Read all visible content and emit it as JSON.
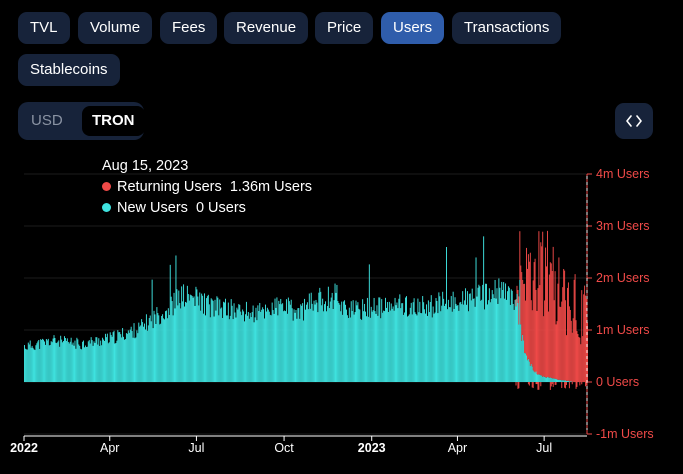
{
  "metric_tabs": [
    "TVL",
    "Volume",
    "Fees",
    "Revenue",
    "Price",
    "Users",
    "Transactions",
    "Stablecoins"
  ],
  "active_metric": "Users",
  "denomination": {
    "options": [
      "USD",
      "TRON"
    ],
    "active": "TRON"
  },
  "embed_icon": "code-brackets-icon",
  "tooltip": {
    "date": "Aug 15, 2023",
    "rows": [
      {
        "label": "Returning Users",
        "value": "1.36m Users",
        "color": "#f04a48"
      },
      {
        "label": "New Users",
        "value": "0 Users",
        "color": "#3fe3e0"
      }
    ]
  },
  "colors": {
    "new_users": "#3fe3e0",
    "returning_users": "#f04a48",
    "active_tab": "#2f5dab",
    "tab_bg": "#17233a"
  },
  "chart_data": {
    "type": "bar",
    "stacked": true,
    "x_ticks": [
      "2022",
      "Apr",
      "Jul",
      "Oct",
      "2023",
      "Apr",
      "Jul"
    ],
    "y_ticks": [
      "4m Users",
      "3m Users",
      "2m Users",
      "1m Users",
      "0 Users",
      "-1m Users"
    ],
    "ylim": [
      -1000000,
      4000000
    ],
    "axis_side": "right",
    "grid": true,
    "x_range": [
      "2022-01-01",
      "2023-08-15"
    ],
    "series": [
      {
        "name": "New Users",
        "color": "#3fe3e0",
        "points": [
          [
            "2022-01-01",
            700000
          ],
          [
            "2022-01-15",
            750000
          ],
          [
            "2022-02-01",
            820000
          ],
          [
            "2022-02-15",
            780000
          ],
          [
            "2022-03-01",
            760000
          ],
          [
            "2022-03-15",
            800000
          ],
          [
            "2022-04-01",
            860000
          ],
          [
            "2022-04-15",
            950000
          ],
          [
            "2022-05-01",
            1050000
          ],
          [
            "2022-05-15",
            1250000
          ],
          [
            "2022-06-01",
            1450000
          ],
          [
            "2022-06-15",
            1700000
          ],
          [
            "2022-07-01",
            1650000
          ],
          [
            "2022-07-15",
            1500000
          ],
          [
            "2022-08-01",
            1450000
          ],
          [
            "2022-08-15",
            1400000
          ],
          [
            "2022-09-01",
            1350000
          ],
          [
            "2022-09-15",
            1450000
          ],
          [
            "2022-10-01",
            1500000
          ],
          [
            "2022-10-15",
            1350000
          ],
          [
            "2022-11-01",
            1600000
          ],
          [
            "2022-11-15",
            1650000
          ],
          [
            "2022-11-25",
            1750000
          ],
          [
            "2022-12-01",
            1500000
          ],
          [
            "2022-12-15",
            1400000
          ],
          [
            "2023-01-01",
            1500000
          ],
          [
            "2023-01-15",
            1450000
          ],
          [
            "2023-02-01",
            1550000
          ],
          [
            "2023-02-15",
            1450000
          ],
          [
            "2023-03-01",
            1500000
          ],
          [
            "2023-03-15",
            1550000
          ],
          [
            "2023-04-01",
            1600000
          ],
          [
            "2023-04-15",
            1650000
          ],
          [
            "2023-05-01",
            1700000
          ],
          [
            "2023-05-15",
            1800000
          ],
          [
            "2023-06-01",
            1650000
          ],
          [
            "2023-06-10",
            600000
          ],
          [
            "2023-06-20",
            200000
          ],
          [
            "2023-07-01",
            100000
          ],
          [
            "2023-07-15",
            50000
          ],
          [
            "2023-08-01",
            0
          ],
          [
            "2023-08-15",
            0
          ]
        ]
      },
      {
        "name": "Returning Users",
        "color": "#f04a48",
        "points": [
          [
            "2023-06-01",
            100000
          ],
          [
            "2023-06-10",
            1500000
          ],
          [
            "2023-06-20",
            2000000
          ],
          [
            "2023-07-01",
            2100000
          ],
          [
            "2023-07-15",
            1900000
          ],
          [
            "2023-08-01",
            1500000
          ],
          [
            "2023-08-15",
            1360000
          ]
        ]
      }
    ]
  }
}
